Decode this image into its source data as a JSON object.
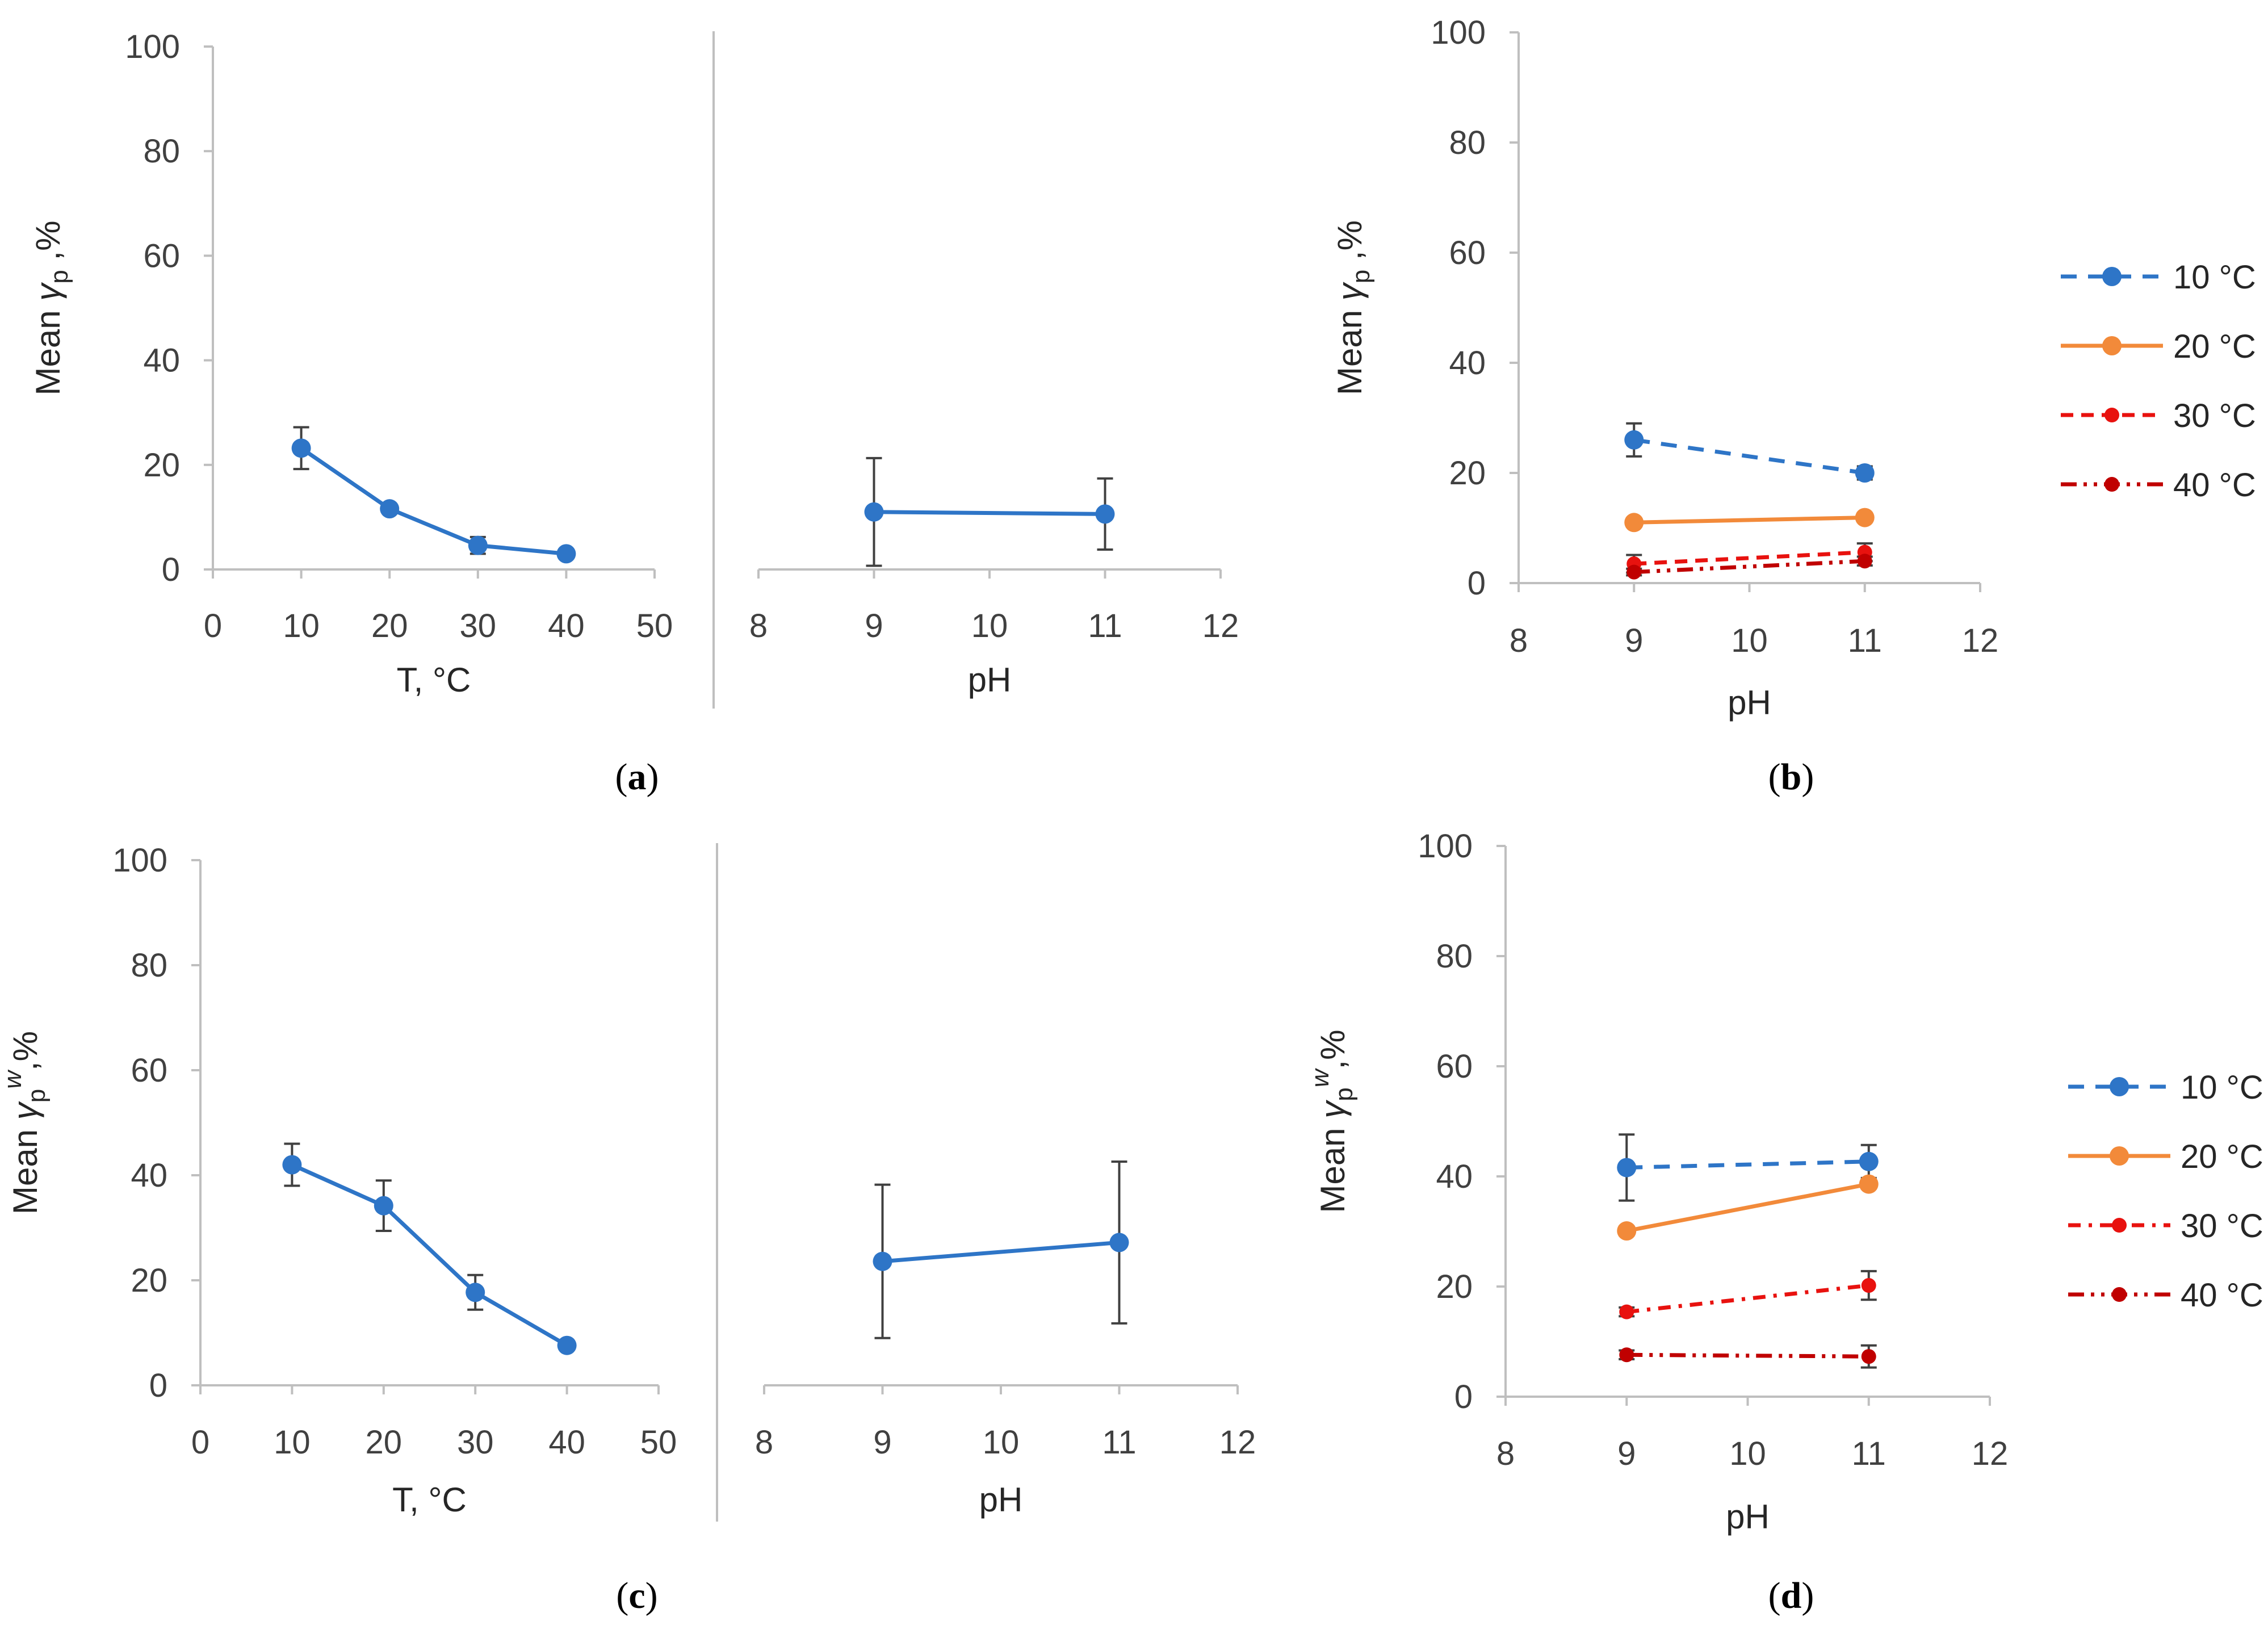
{
  "colors": {
    "blue": "#2e75c7",
    "orange": "#f28a3a",
    "red": "#e8120f",
    "darkred": "#c00000",
    "axis": "#bfbfbf",
    "errorbar": "#404040",
    "text": "#404040"
  },
  "chart_data": [
    {
      "id": "a-left",
      "panel": "a",
      "type": "line",
      "xlabel": "T,  °C",
      "ylabel": "Mean γp ,%",
      "ylabel_parts": {
        "pre": "Mean ",
        "sym": "γ",
        "sub": "p",
        "sup": "",
        "post": " ,%"
      },
      "xlim": [
        0,
        50
      ],
      "ylim": [
        0,
        100
      ],
      "xticks": [
        0,
        10,
        20,
        30,
        40,
        50
      ],
      "yticks": [
        0,
        20,
        40,
        60,
        80,
        100
      ],
      "series": [
        {
          "name": "",
          "color": "blue",
          "dash": "",
          "x": [
            10,
            20,
            30,
            40
          ],
          "y": [
            23.2,
            11.6,
            4.6,
            3.0
          ],
          "err": [
            4.0,
            0.8,
            1.6,
            0.8
          ]
        }
      ]
    },
    {
      "id": "a-right",
      "panel": "a",
      "type": "line",
      "xlabel": "pH",
      "xlim": [
        8,
        12
      ],
      "ylim": [
        0,
        100
      ],
      "xticks": [
        8,
        9,
        10,
        11,
        12
      ],
      "series": [
        {
          "name": "",
          "color": "blue",
          "dash": "",
          "x": [
            9,
            11
          ],
          "y": [
            11.0,
            10.6
          ],
          "err": [
            10.3,
            6.8
          ]
        }
      ]
    },
    {
      "id": "b",
      "panel": "b",
      "type": "line",
      "xlabel": "pH",
      "ylabel": "Mean γp ,%",
      "ylabel_parts": {
        "pre": "Mean ",
        "sym": "γ",
        "sub": "p",
        "sup": "",
        "post": " ,%"
      },
      "xlim": [
        8,
        12
      ],
      "ylim": [
        0,
        100
      ],
      "xticks": [
        8,
        9,
        10,
        11,
        12
      ],
      "yticks": [
        0,
        20,
        40,
        60,
        80,
        100
      ],
      "series": [
        {
          "name": "10 °C",
          "color": "blue",
          "dash": "long",
          "x": [
            9,
            11
          ],
          "y": [
            26.0,
            20.0
          ],
          "err": [
            3.0,
            1.2
          ]
        },
        {
          "name": "20 °C",
          "color": "orange",
          "dash": "",
          "x": [
            9,
            11
          ],
          "y": [
            11.0,
            11.9
          ],
          "err": [
            0.8,
            0.8
          ]
        },
        {
          "name": "30 °C",
          "color": "red",
          "dash": "dash",
          "x": [
            9,
            11
          ],
          "y": [
            3.5,
            5.6
          ],
          "err": [
            1.6,
            1.6
          ]
        },
        {
          "name": "40 °C",
          "color": "darkred",
          "dash": "dashdotdot",
          "x": [
            9,
            11
          ],
          "y": [
            2.0,
            4.0
          ],
          "err": [
            0.6,
            0.8
          ]
        }
      ]
    },
    {
      "id": "c-left",
      "panel": "c",
      "type": "line",
      "xlabel": "T,  °C",
      "ylabel": "Mean γpw,%",
      "ylabel_parts": {
        "pre": "Mean ",
        "sym": "γ",
        "sub": "p",
        "sup": "w",
        "post": ",%"
      },
      "xlim": [
        0,
        50
      ],
      "ylim": [
        0,
        100
      ],
      "xticks": [
        0,
        10,
        20,
        30,
        40,
        50
      ],
      "yticks": [
        0,
        20,
        40,
        60,
        80,
        100
      ],
      "series": [
        {
          "name": "",
          "color": "blue",
          "dash": "",
          "x": [
            10,
            20,
            30,
            40
          ],
          "y": [
            42.0,
            34.2,
            17.7,
            7.6
          ],
          "err": [
            4.0,
            4.8,
            3.3,
            0.8
          ]
        }
      ]
    },
    {
      "id": "c-right",
      "panel": "c",
      "type": "line",
      "xlabel": "pH",
      "xlim": [
        8,
        12
      ],
      "ylim": [
        0,
        100
      ],
      "xticks": [
        8,
        9,
        10,
        11,
        12
      ],
      "series": [
        {
          "name": "",
          "color": "blue",
          "dash": "",
          "x": [
            9,
            11
          ],
          "y": [
            23.6,
            27.2
          ],
          "err": [
            14.6,
            15.4
          ]
        }
      ]
    },
    {
      "id": "d",
      "panel": "d",
      "type": "line",
      "xlabel": "pH",
      "ylabel": "Mean γpw,%",
      "ylabel_parts": {
        "pre": "Mean ",
        "sym": "γ",
        "sub": "p",
        "sup": "w",
        "post": ",%"
      },
      "xlim": [
        8,
        12
      ],
      "ylim": [
        0,
        100
      ],
      "xticks": [
        8,
        9,
        10,
        11,
        12
      ],
      "yticks": [
        0,
        20,
        40,
        60,
        80,
        100
      ],
      "series": [
        {
          "name": "10 °C",
          "color": "blue",
          "dash": "long",
          "x": [
            9,
            11
          ],
          "y": [
            41.6,
            42.7
          ],
          "err": [
            6.0,
            3.0
          ]
        },
        {
          "name": "20 °C",
          "color": "orange",
          "dash": "",
          "x": [
            9,
            11
          ],
          "y": [
            30.1,
            38.6
          ],
          "err": [
            0.8,
            0.8
          ]
        },
        {
          "name": "30 °C",
          "color": "red",
          "dash": "dashdot",
          "x": [
            9,
            11
          ],
          "y": [
            15.4,
            20.2
          ],
          "err": [
            0.8,
            2.6
          ]
        },
        {
          "name": "40 °C",
          "color": "darkred",
          "dash": "dashdotdot",
          "x": [
            9,
            11
          ],
          "y": [
            7.6,
            7.3
          ],
          "err": [
            0.8,
            2.0
          ]
        }
      ]
    }
  ],
  "panel_labels": {
    "a": "a",
    "b": "b",
    "c": "c",
    "d": "d"
  }
}
